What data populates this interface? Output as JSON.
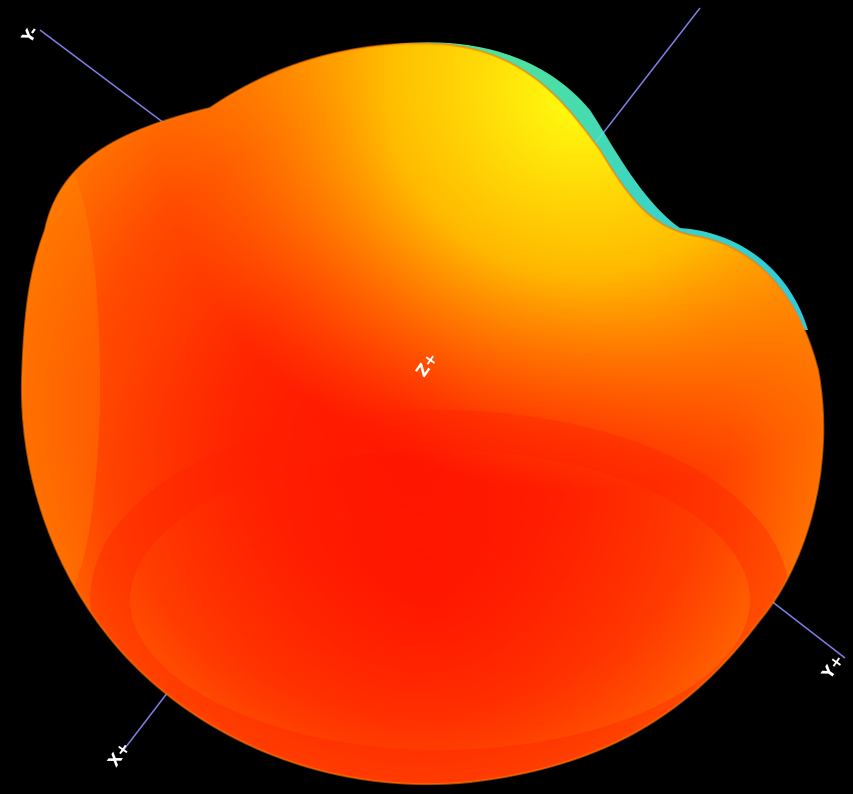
{
  "view": {
    "background_color": "#000000",
    "axis_line_color": "#7777dd",
    "axis_labels": {
      "x_plus": "X+",
      "y_plus": "Y+",
      "y_minus": "Y-",
      "z_plus": "Z+"
    },
    "surface_colors": {
      "core": "#ff1a00",
      "mid": "#ff5a00",
      "warm": "#ff9a00",
      "yellow": "#ffee00",
      "lime": "#c8ff30",
      "green": "#40ffb0",
      "cyan": "#30e8ff"
    }
  }
}
